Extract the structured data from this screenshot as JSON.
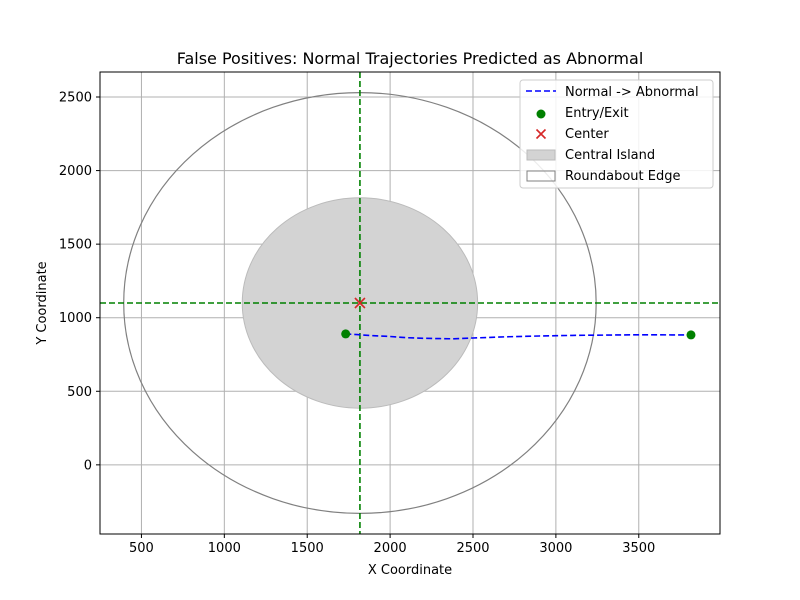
{
  "chart_data": {
    "type": "scatter",
    "title": "False Positives: Normal Trajectories Predicted as Abnormal",
    "xlabel": "X Coordinate",
    "ylabel": "Y Coordinate",
    "xlim": [
      250,
      3990
    ],
    "ylim": [
      -470,
      2670
    ],
    "xticks": [
      500,
      1000,
      1500,
      2000,
      2500,
      3000,
      3500
    ],
    "yticks": [
      0,
      500,
      1000,
      1500,
      2000,
      2500
    ],
    "grid": true,
    "legend_position": "top-right",
    "colors": {
      "trajectory": "#0000ff",
      "entry_exit": "#008000",
      "center": "#d62728",
      "island_fill": "#d3d3d3",
      "island_edge": "#bbbbbb",
      "edge": "#808080",
      "crosshair": "#008000",
      "grid": "#b0b0b0"
    },
    "center": {
      "x": 1818,
      "y": 1100
    },
    "central_island": {
      "cx": 1818,
      "cy": 1100,
      "rx": 710,
      "ry": 715
    },
    "roundabout_edge": {
      "cx": 1818,
      "cy": 1100,
      "rx": 1425,
      "ry": 1430
    },
    "trajectory": {
      "x": [
        1730,
        1800,
        1900,
        2000,
        2100,
        2200,
        2300,
        2380,
        2500,
        2600,
        2700,
        2800,
        2900,
        3000,
        3100,
        3200,
        3300,
        3400,
        3500,
        3600,
        3700,
        3815
      ],
      "y": [
        890,
        885,
        878,
        872,
        864,
        860,
        858,
        857,
        862,
        866,
        870,
        873,
        876,
        878,
        880,
        881,
        882,
        883,
        884,
        884,
        883,
        883
      ]
    },
    "entry_exit": [
      {
        "x": 1732,
        "y": 890
      },
      {
        "x": 3815,
        "y": 883
      }
    ],
    "legend": [
      {
        "label": "Normal -> Abnormal",
        "kind": "dashed-line",
        "color": "#0000ff"
      },
      {
        "label": "Entry/Exit",
        "kind": "dot",
        "color": "#008000"
      },
      {
        "label": "Center",
        "kind": "x-marker",
        "color": "#d62728"
      },
      {
        "label": "Central Island",
        "kind": "filled-patch",
        "color": "#d3d3d3"
      },
      {
        "label": "Roundabout Edge",
        "kind": "empty-patch",
        "color": "#808080"
      }
    ]
  }
}
